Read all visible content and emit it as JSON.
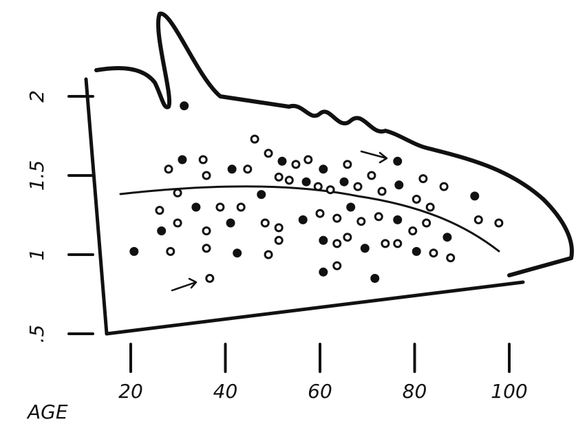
{
  "chart_data": {
    "type": "scatter",
    "x_label": "AGE",
    "x": [
      31.3,
      46.2,
      28.0,
      30.9,
      35.3,
      36.0,
      41.4,
      44.7,
      49.1,
      52.0,
      54.9,
      57.5,
      60.7,
      65.8,
      70.9,
      76.4,
      81.8,
      86.2,
      92.7,
      26.1,
      29.9,
      33.8,
      38.9,
      43.3,
      47.6,
      51.3,
      53.5,
      57.1,
      59.6,
      62.2,
      65.1,
      68.0,
      73.1,
      76.7,
      80.4,
      83.3,
      26.5,
      29.9,
      36.0,
      41.1,
      48.4,
      51.3,
      56.4,
      60.0,
      63.6,
      66.5,
      68.7,
      72.4,
      76.4,
      79.6,
      82.5,
      86.9,
      93.5,
      97.8,
      20.7,
      28.4,
      36.0,
      42.5,
      49.1,
      51.3,
      60.7,
      63.6,
      65.8,
      69.5,
      73.8,
      76.4,
      80.4,
      84.0,
      87.6,
      60.7,
      63.6,
      36.7,
      71.6
    ],
    "values": [
      1.94,
      1.73,
      1.54,
      1.6,
      1.6,
      1.5,
      1.54,
      1.54,
      1.64,
      1.59,
      1.57,
      1.6,
      1.54,
      1.57,
      1.5,
      1.59,
      1.48,
      1.43,
      1.37,
      1.28,
      1.39,
      1.3,
      1.3,
      1.3,
      1.38,
      1.49,
      1.47,
      1.46,
      1.43,
      1.41,
      1.46,
      1.43,
      1.4,
      1.44,
      1.35,
      1.3,
      1.15,
      1.2,
      1.15,
      1.2,
      1.2,
      1.17,
      1.22,
      1.26,
      1.23,
      1.3,
      1.21,
      1.24,
      1.22,
      1.15,
      1.2,
      1.11,
      1.22,
      1.2,
      1.02,
      1.02,
      1.04,
      1.01,
      1.0,
      1.09,
      1.09,
      1.07,
      1.11,
      1.04,
      1.07,
      1.07,
      1.02,
      1.01,
      0.98,
      0.89,
      0.93,
      0.85,
      0.85
    ],
    "color": "#111111",
    "xlim": [
      20,
      100
    ],
    "xticks": [
      20,
      40,
      60,
      80,
      100
    ],
    "ylim": [
      0.5,
      2
    ],
    "yticks": [
      {
        "value": 0.5,
        "label": ".5"
      },
      1,
      1.5,
      2
    ]
  }
}
